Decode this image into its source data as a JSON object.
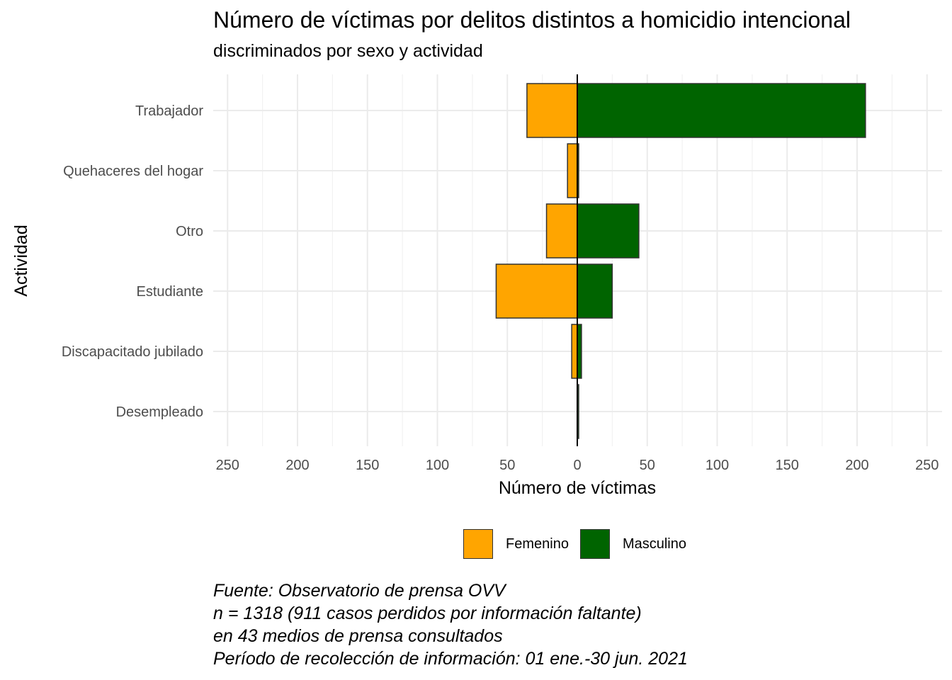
{
  "chart_data": {
    "type": "bar",
    "orientation": "horizontal-diverging",
    "title": "Número de víctimas por delitos distintos a homicidio intencional",
    "subtitle": "discriminados por sexo y actividad",
    "xlabel": "Número de víctimas",
    "ylabel": "Actividad",
    "categories": [
      "Trabajador",
      "Quehaceres del hogar",
      "Otro",
      "Estudiante",
      "Discapacitado   jubilado",
      "Desempleado"
    ],
    "series": [
      {
        "name": "Femenino",
        "color": "#FFA500",
        "values": [
          36,
          7,
          22,
          58,
          4,
          0
        ]
      },
      {
        "name": "Masculino",
        "color": "#006400",
        "values": [
          206,
          1,
          44,
          25,
          3,
          1
        ]
      }
    ],
    "xticks": [
      -250,
      -200,
      -150,
      -100,
      -50,
      0,
      50,
      100,
      150,
      200,
      250
    ],
    "xtick_labels": [
      "250",
      "200",
      "150",
      "100",
      "50",
      "0",
      "50",
      "100",
      "150",
      "200",
      "250"
    ],
    "xlim": [
      -252,
      260
    ],
    "grid": true,
    "legend_position": "bottom"
  },
  "caption": {
    "lines": [
      "Fuente: Observatorio de prensa OVV",
      "n = 1318 (911 casos perdidos por información faltante)",
      "en 43 medios de prensa consultados",
      "Período de recolección de información: 01 ene.-30 jun. 2021"
    ]
  }
}
